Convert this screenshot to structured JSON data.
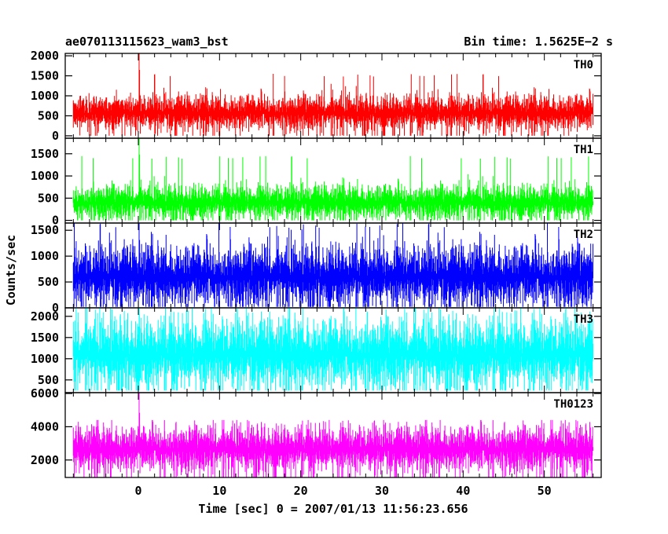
{
  "header": {
    "left_title": "ae070113115623_wam3_bst",
    "right_title": "Bin time: 1.5625E−2 s"
  },
  "chart_data": {
    "type": "line",
    "title": "ae070113115623_wam3_bst",
    "subtitle": "Bin time: 1.5625E−2 s",
    "xlabel": "Time [sec] 0 = 2007/01/13 11:56:23.656",
    "ylabel": "Counts/sec",
    "xlim": [
      -9,
      57
    ],
    "x_data_range": [
      -8,
      56
    ],
    "x_ticks": [
      0,
      10,
      20,
      30,
      40,
      50
    ],
    "x_tick_labels": [
      "0",
      "10",
      "20",
      "30",
      "40",
      "50"
    ],
    "grid": false,
    "panels": [
      {
        "name": "TH0",
        "color": "#ff0000",
        "ylim": [
          -60,
          2060
        ],
        "y_ticks": [
          0,
          500,
          1000,
          1500,
          2000
        ],
        "y_tick_labels": [
          "0",
          "500",
          "1000",
          "1500",
          "2000"
        ],
        "mean": 570,
        "spread": 170,
        "min": 5,
        "max": 1550,
        "peak_x": 0.1,
        "peak": 2060,
        "min_floor": 0
      },
      {
        "name": "TH1",
        "color": "#00ff00",
        "ylim": [
          -60,
          1850
        ],
        "y_ticks": [
          0,
          500,
          1000,
          1500
        ],
        "y_tick_labels": [
          "0",
          "500",
          "1000",
          "1500"
        ],
        "mean": 400,
        "spread": 150,
        "min": 5,
        "max": 1450,
        "peak_x": 0.1,
        "peak": 1850,
        "min_floor": 0
      },
      {
        "name": "TH2",
        "color": "#0000ff",
        "ylim": [
          0,
          1640
        ],
        "y_ticks": [
          0,
          500,
          1000,
          1500
        ],
        "y_tick_labels": [
          "0",
          "500",
          "1000",
          "1500"
        ],
        "mean": 600,
        "spread": 230,
        "min": 40,
        "max": 1640,
        "peak_x": 0.1,
        "peak": 1640,
        "min_floor": 20
      },
      {
        "name": "TH3",
        "color": "#00ffff",
        "ylim": [
          200,
          2200
        ],
        "y_ticks": [
          500,
          1000,
          1500,
          2000
        ],
        "y_tick_labels": [
          "500",
          "1000",
          "1500",
          "2000"
        ],
        "mean": 1100,
        "spread": 320,
        "min": 300,
        "max": 2200,
        "peak_x": 0.1,
        "peak": 2200,
        "min_floor": 250
      },
      {
        "name": "TH0123",
        "color": "#ff00ff",
        "ylim": [
          950,
          6050
        ],
        "y_ticks": [
          2000,
          4000,
          6000
        ],
        "y_tick_labels": [
          "2000",
          "4000",
          "6000"
        ],
        "mean": 2650,
        "spread": 520,
        "min": 950,
        "max": 4400,
        "peak_x": 0.1,
        "peak": 6050,
        "min_floor": 950
      }
    ]
  }
}
